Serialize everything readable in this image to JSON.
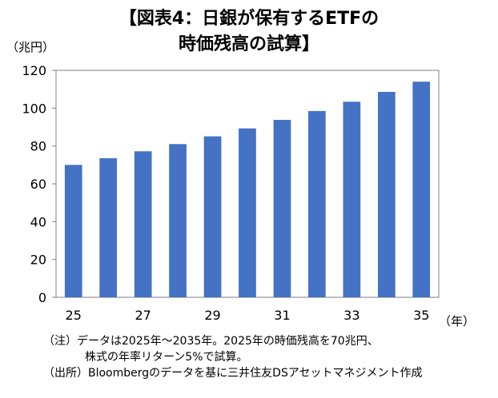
{
  "title_line1": "【図表4：日銀が保有するETFの",
  "title_line2": "時価残高の試算】",
  "y_unit": "（兆円）",
  "x_unit": "（年）",
  "notes": [
    "（注）データは2025年～2035年。2025年の時価残高を70兆円、",
    "株式の年率リターン5%で試算。",
    "（出所）Bloombergのデータを基に三井住友DSアセットマネジメント作成"
  ],
  "chart_data": {
    "type": "bar",
    "categories": [
      "25",
      "26",
      "27",
      "28",
      "29",
      "30",
      "31",
      "32",
      "33",
      "34",
      "35"
    ],
    "values": [
      70.0,
      73.5,
      77.2,
      81.0,
      85.1,
      89.3,
      93.8,
      98.5,
      103.4,
      108.6,
      114.0
    ],
    "x_tick_labels": [
      "25",
      "27",
      "29",
      "31",
      "33",
      "35"
    ],
    "y_ticks": [
      0,
      20,
      40,
      60,
      80,
      100,
      120
    ],
    "ylim": [
      0,
      120
    ],
    "bar_color": "#4472c4",
    "grid": false,
    "legend": "none"
  }
}
